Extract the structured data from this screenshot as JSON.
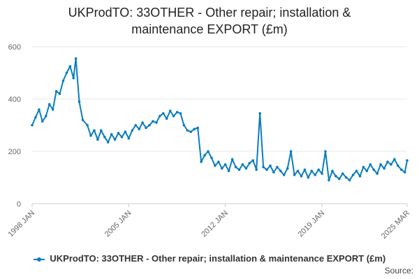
{
  "title_line1": "UKProdTO: 33OTHER - Other repair; installation &",
  "title_line2": "maintenance EXPORT (£m)",
  "legend_label": "UKProdTO: 33OTHER - Other repair; installation & maintenance EXPORT (£m)",
  "source_label": "Source:",
  "colors": {
    "series": "#0a7dbe",
    "grid": "#e6e6e6",
    "axis": "#cccccc"
  },
  "chart_data": {
    "type": "line",
    "title": "UKProdTO: 33OTHER - Other repair; installation & maintenance EXPORT (£m)",
    "xlabel": "",
    "ylabel": "",
    "ylim": [
      0,
      600
    ],
    "yticks": [
      0,
      200,
      400,
      600
    ],
    "xlim": [
      "1998-01",
      "2025-03"
    ],
    "xticks": [
      "1998 JAN",
      "2005 JAN",
      "2012 JAN",
      "2019 JAN",
      "2025 MAR"
    ],
    "grid": true,
    "legend": "bottom",
    "series": [
      {
        "name": "UKProdTO: 33OTHER - Other repair; installation & maintenance EXPORT (£m)",
        "points": [
          [
            "1998-01",
            300
          ],
          [
            "1998-04",
            330
          ],
          [
            "1998-07",
            360
          ],
          [
            "1998-10",
            315
          ],
          [
            "1999-01",
            335
          ],
          [
            "1999-04",
            380
          ],
          [
            "1999-07",
            360
          ],
          [
            "1999-10",
            430
          ],
          [
            "2000-01",
            420
          ],
          [
            "2000-04",
            470
          ],
          [
            "2000-07",
            500
          ],
          [
            "2000-10",
            525
          ],
          [
            "2001-01",
            480
          ],
          [
            "2001-03",
            555
          ],
          [
            "2001-06",
            390
          ],
          [
            "2001-09",
            320
          ],
          [
            "2002-01",
            300
          ],
          [
            "2002-04",
            260
          ],
          [
            "2002-07",
            280
          ],
          [
            "2002-10",
            245
          ],
          [
            "2003-01",
            280
          ],
          [
            "2003-04",
            255
          ],
          [
            "2003-07",
            235
          ],
          [
            "2003-10",
            265
          ],
          [
            "2004-01",
            245
          ],
          [
            "2004-04",
            270
          ],
          [
            "2004-07",
            255
          ],
          [
            "2004-10",
            275
          ],
          [
            "2005-01",
            250
          ],
          [
            "2005-04",
            280
          ],
          [
            "2005-07",
            300
          ],
          [
            "2005-10",
            285
          ],
          [
            "2006-01",
            310
          ],
          [
            "2006-04",
            290
          ],
          [
            "2006-07",
            300
          ],
          [
            "2006-10",
            315
          ],
          [
            "2007-01",
            310
          ],
          [
            "2007-04",
            335
          ],
          [
            "2007-07",
            345
          ],
          [
            "2007-10",
            325
          ],
          [
            "2008-01",
            355
          ],
          [
            "2008-04",
            335
          ],
          [
            "2008-07",
            350
          ],
          [
            "2008-10",
            345
          ],
          [
            "2009-01",
            300
          ],
          [
            "2009-04",
            280
          ],
          [
            "2009-07",
            275
          ],
          [
            "2009-10",
            285
          ],
          [
            "2010-01",
            290
          ],
          [
            "2010-04",
            160
          ],
          [
            "2010-07",
            185
          ],
          [
            "2010-10",
            200
          ],
          [
            "2011-01",
            175
          ],
          [
            "2011-04",
            145
          ],
          [
            "2011-07",
            160
          ],
          [
            "2011-10",
            135
          ],
          [
            "2012-01",
            150
          ],
          [
            "2012-04",
            125
          ],
          [
            "2012-07",
            170
          ],
          [
            "2012-10",
            140
          ],
          [
            "2013-01",
            130
          ],
          [
            "2013-04",
            150
          ],
          [
            "2013-07",
            135
          ],
          [
            "2013-10",
            155
          ],
          [
            "2014-01",
            165
          ],
          [
            "2014-04",
            130
          ],
          [
            "2014-07",
            345
          ],
          [
            "2014-10",
            140
          ],
          [
            "2015-01",
            130
          ],
          [
            "2015-04",
            145
          ],
          [
            "2015-07",
            120
          ],
          [
            "2015-10",
            140
          ],
          [
            "2016-01",
            125
          ],
          [
            "2016-04",
            110
          ],
          [
            "2016-07",
            135
          ],
          [
            "2016-10",
            200
          ],
          [
            "2017-01",
            110
          ],
          [
            "2017-04",
            125
          ],
          [
            "2017-07",
            105
          ],
          [
            "2017-10",
            130
          ],
          [
            "2018-01",
            100
          ],
          [
            "2018-04",
            125
          ],
          [
            "2018-07",
            110
          ],
          [
            "2018-10",
            130
          ],
          [
            "2019-01",
            115
          ],
          [
            "2019-04",
            200
          ],
          [
            "2019-07",
            90
          ],
          [
            "2019-10",
            125
          ],
          [
            "2020-01",
            105
          ],
          [
            "2020-04",
            95
          ],
          [
            "2020-07",
            115
          ],
          [
            "2020-10",
            100
          ],
          [
            "2021-01",
            90
          ],
          [
            "2021-04",
            110
          ],
          [
            "2021-07",
            125
          ],
          [
            "2021-10",
            105
          ],
          [
            "2022-01",
            140
          ],
          [
            "2022-04",
            125
          ],
          [
            "2022-07",
            150
          ],
          [
            "2022-10",
            130
          ],
          [
            "2023-01",
            115
          ],
          [
            "2023-04",
            150
          ],
          [
            "2023-07",
            135
          ],
          [
            "2023-10",
            160
          ],
          [
            "2024-01",
            150
          ],
          [
            "2024-04",
            170
          ],
          [
            "2024-07",
            145
          ],
          [
            "2024-10",
            130
          ],
          [
            "2025-01",
            120
          ],
          [
            "2025-03",
            165
          ]
        ]
      }
    ]
  }
}
